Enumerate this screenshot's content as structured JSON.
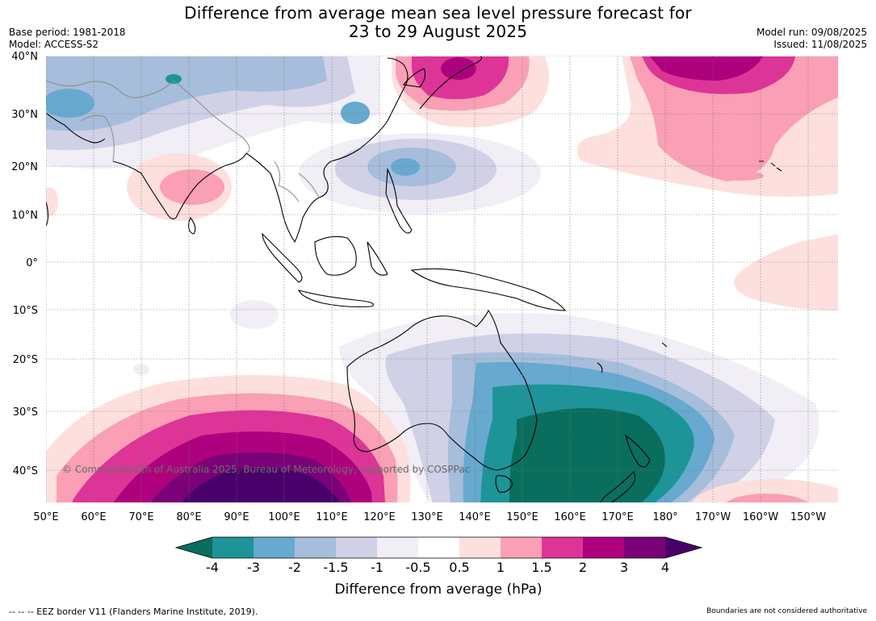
{
  "title_line1": "Difference from average mean sea level pressure forecast for",
  "title_line2": "23 to 29 August 2025",
  "base_period": "Base period: 1981-2018",
  "model": "Model: ACCESS-S2",
  "model_run": "Model run: 09/08/2025",
  "issued": "Issued: 11/08/2025",
  "copyright": "© Commonwealth of Australia 2025, Bureau of Meteorology, supported by COSPPac",
  "footer_left": "--  --  -- EEZ border V11 (Flanders Marine Institute, 2019).",
  "footer_right": "Boundaries are not considered authoritative",
  "lat_labels": [
    "40°N",
    "30°N",
    "20°N",
    "10°N",
    "0°",
    "10°S",
    "20°S",
    "30°S",
    "40°S"
  ],
  "lon_labels": [
    "50°E",
    "60°E",
    "70°E",
    "80°E",
    "90°E",
    "100°E",
    "110°E",
    "120°E",
    "130°E",
    "140°E",
    "150°E",
    "160°E",
    "170°E",
    "180°",
    "170°W",
    "160°W",
    "150°W"
  ],
  "colorbar": {
    "title": "Difference from average (hPa)",
    "ticks": [
      "-4",
      "-3",
      "-2",
      "-1.5",
      "-1",
      "-0.5",
      "0.5",
      "1",
      "1.5",
      "2",
      "3",
      "4"
    ],
    "colors": [
      "#0a6e5e",
      "#1d9497",
      "#67a9cf",
      "#a6bddb",
      "#d0d1e6",
      "#f1eef6",
      "#ffffff",
      "#fde0dd",
      "#fa9fb5",
      "#dd3497",
      "#ae017e",
      "#7a0177",
      "#49006a"
    ]
  }
}
